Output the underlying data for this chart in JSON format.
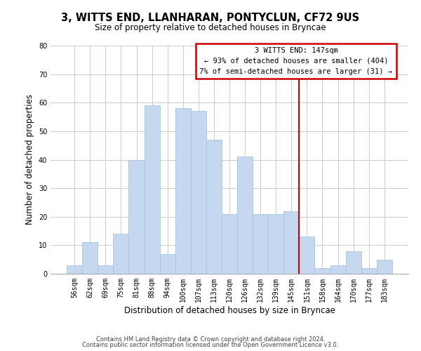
{
  "title": "3, WITTS END, LLANHARAN, PONTYCLUN, CF72 9US",
  "subtitle": "Size of property relative to detached houses in Bryncae",
  "xlabel": "Distribution of detached houses by size in Bryncae",
  "ylabel": "Number of detached properties",
  "bar_labels": [
    "56sqm",
    "62sqm",
    "69sqm",
    "75sqm",
    "81sqm",
    "88sqm",
    "94sqm",
    "100sqm",
    "107sqm",
    "113sqm",
    "120sqm",
    "126sqm",
    "132sqm",
    "139sqm",
    "145sqm",
    "151sqm",
    "158sqm",
    "164sqm",
    "170sqm",
    "177sqm",
    "183sqm"
  ],
  "bar_values": [
    3,
    11,
    3,
    14,
    40,
    59,
    7,
    58,
    57,
    47,
    21,
    41,
    21,
    21,
    22,
    13,
    2,
    3,
    8,
    2,
    5
  ],
  "bar_color": "#c5d8f0",
  "bar_edge_color": "#a8c4e0",
  "background_color": "#ffffff",
  "grid_color": "#cccccc",
  "vline_x_index": 14.5,
  "vline_color": "#cc0000",
  "annotation_title": "3 WITTS END: 147sqm",
  "annotation_line1": "← 93% of detached houses are smaller (404)",
  "annotation_line2": "7% of semi-detached houses are larger (31) →",
  "annotation_box_color": "#ffffff",
  "annotation_border_color": "#cc0000",
  "ylim": [
    0,
    80
  ],
  "yticks": [
    0,
    10,
    20,
    30,
    40,
    50,
    60,
    70,
    80
  ],
  "footer_line1": "Contains HM Land Registry data © Crown copyright and database right 2024.",
  "footer_line2": "Contains public sector information licensed under the Open Government Licence v3.0.",
  "title_fontsize": 10.5,
  "subtitle_fontsize": 8.5,
  "tick_fontsize": 7,
  "ylabel_fontsize": 8.5,
  "xlabel_fontsize": 8.5,
  "annotation_fontsize": 7.5,
  "footer_fontsize": 6.0
}
